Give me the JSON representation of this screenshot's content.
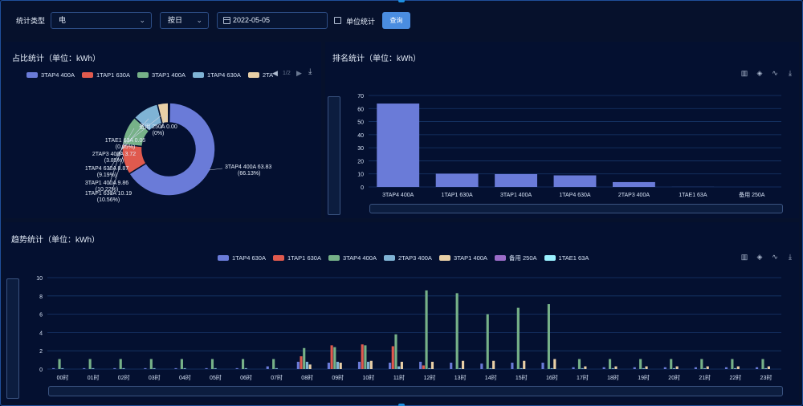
{
  "toolbar": {
    "type_label": "统计类型",
    "type_value": "电",
    "period_value": "按日",
    "date_value": "2022-05-05",
    "unit_label": "单位统计",
    "query_label": "查询"
  },
  "ratio": {
    "title": "占比统计（单位：kWh）",
    "legend": [
      {
        "name": "3TAP4 400A",
        "color": "#6a7bd8"
      },
      {
        "name": "1TAP1 630A",
        "color": "#e05a4e"
      },
      {
        "name": "3TAP1 400A",
        "color": "#76b188"
      },
      {
        "name": "1TAP4 630A",
        "color": "#7fb3d5"
      },
      {
        "name": "2TA",
        "color": "#e8cfa6"
      }
    ],
    "page_indicator": "1/2",
    "slices": [
      {
        "name": "3TAP4 400A",
        "value": 63.83,
        "percent": "66.13%",
        "color": "#6a7bd8",
        "label1": "3TAP4 400A 63.83",
        "label2": "(66.13%)"
      },
      {
        "name": "1TAP1 630A",
        "value": 10.19,
        "percent": "10.56%",
        "color": "#e05a4e",
        "label1": "1TAP1 630A 10.19",
        "label2": "(10.56%)"
      },
      {
        "name": "3TAP1 400A",
        "value": 9.86,
        "percent": "10.22%",
        "color": "#76b188",
        "label1": "3TAP1 400A 9.86",
        "label2": "(10.22%)"
      },
      {
        "name": "1TAP4 630A",
        "value": 8.87,
        "percent": "9.19%",
        "color": "#7fb3d5",
        "label1": "1TAP4 630A 8.87",
        "label2": "(9.19%)"
      },
      {
        "name": "2TAP3 400A",
        "value": 3.72,
        "percent": "3.85%",
        "color": "#e8cfa6",
        "label1": "2TAP3 400A 3.72",
        "label2": "(3.85%)"
      },
      {
        "name": "1TAE1 63A",
        "value": 0.05,
        "percent": "0.05%",
        "color": "#9adcf0",
        "label1": "1TAE1 63A 0.05",
        "label2": "(0.05%)"
      },
      {
        "name": "备用 250A",
        "value": 0.0,
        "percent": "0%",
        "color": "#9b6cc8",
        "label1": "备用 250A 0.00",
        "label2": "(0%)"
      }
    ]
  },
  "rank": {
    "title": "排名统计（单位：kWh）"
  },
  "trend": {
    "title": "趋势统计（单位：kWh）",
    "legend": [
      {
        "name": "1TAP4 630A",
        "color": "#6a7bd8"
      },
      {
        "name": "1TAP1 630A",
        "color": "#e05a4e"
      },
      {
        "name": "3TAP4 400A",
        "color": "#76b188"
      },
      {
        "name": "2TAP3 400A",
        "color": "#7fb3d5"
      },
      {
        "name": "3TAP1 400A",
        "color": "#e8cfa6"
      },
      {
        "name": "备用 250A",
        "color": "#9b6cc8"
      },
      {
        "name": "1TAE1 63A",
        "color": "#9af0ff"
      }
    ]
  },
  "chart_data": [
    {
      "type": "pie",
      "title": "占比统计（单位：kWh）",
      "categories": [
        "3TAP4 400A",
        "1TAP1 630A",
        "3TAP1 400A",
        "1TAP4 630A",
        "2TAP3 400A",
        "1TAE1 63A",
        "备用 250A"
      ],
      "values": [
        63.83,
        10.19,
        9.86,
        8.87,
        3.72,
        0.05,
        0.0
      ]
    },
    {
      "type": "bar",
      "title": "排名统计（单位：kWh）",
      "categories": [
        "3TAP4 400A",
        "1TAP1 630A",
        "3TAP1 400A",
        "1TAP4 630A",
        "2TAP3 400A",
        "1TAE1 63A",
        "备用 250A"
      ],
      "values": [
        63.83,
        10.19,
        9.86,
        8.87,
        3.72,
        0.05,
        0.0
      ],
      "ylim": [
        0,
        70
      ],
      "yticks": [
        "0",
        "10",
        "20",
        "30",
        "40",
        "50",
        "60",
        "70"
      ],
      "grid": true,
      "color": "#6a7bd8"
    },
    {
      "type": "bar",
      "title": "趋势统计（单位：kWh）",
      "categories": [
        "00时",
        "01时",
        "02时",
        "03时",
        "04时",
        "05时",
        "06时",
        "07时",
        "08时",
        "09时",
        "10时",
        "11时",
        "12时",
        "13时",
        "14时",
        "15时",
        "16时",
        "17时",
        "18时",
        "19时",
        "20时",
        "21时",
        "22时",
        "23时"
      ],
      "ylim": [
        0,
        10
      ],
      "yticks": [
        "0",
        "2",
        "4",
        "6",
        "8",
        "10"
      ],
      "grid": true,
      "legend_position": "top-center",
      "series": [
        {
          "name": "1TAP4 630A",
          "color": "#6a7bd8",
          "values": [
            0.1,
            0.1,
            0.1,
            0.1,
            0.1,
            0.1,
            0.1,
            0.3,
            0.8,
            0.7,
            0.8,
            0.7,
            0.8,
            0.7,
            0.6,
            0.7,
            0.7,
            0.2,
            0.2,
            0.2,
            0.2,
            0.2,
            0.2,
            0.2
          ]
        },
        {
          "name": "1TAP1 630A",
          "color": "#e05a4e",
          "values": [
            0,
            0,
            0,
            0,
            0,
            0,
            0,
            0,
            1.4,
            2.6,
            2.7,
            2.5,
            0.4,
            0,
            0,
            0,
            0,
            0,
            0,
            0,
            0,
            0,
            0,
            0
          ]
        },
        {
          "name": "3TAP4 400A",
          "color": "#76b188",
          "values": [
            1.1,
            1.1,
            1.1,
            1.1,
            1.1,
            1.1,
            1.1,
            1.1,
            2.3,
            2.4,
            2.6,
            3.8,
            8.6,
            8.3,
            6.0,
            6.7,
            7.1,
            1.1,
            1.1,
            1.1,
            1.1,
            1.1,
            1.1,
            1.1
          ]
        },
        {
          "name": "2TAP3 400A",
          "color": "#7fb3d5",
          "values": [
            0.1,
            0.1,
            0.1,
            0.1,
            0.1,
            0.1,
            0.1,
            0.1,
            0.8,
            0.8,
            0.8,
            0.3,
            0.1,
            0.1,
            0.1,
            0.1,
            0.1,
            0.1,
            0.1,
            0.1,
            0.1,
            0.1,
            0.1,
            0.1
          ]
        },
        {
          "name": "3TAP1 400A",
          "color": "#e8cfa6",
          "values": [
            0,
            0,
            0,
            0,
            0,
            0,
            0,
            0,
            0.5,
            0.7,
            0.9,
            0.8,
            0.8,
            0.9,
            0.9,
            0.9,
            1.1,
            0.3,
            0.3,
            0.3,
            0.3,
            0.3,
            0.3,
            0.3
          ]
        },
        {
          "name": "备用 250A",
          "color": "#9b6cc8",
          "values": [
            0,
            0,
            0,
            0,
            0,
            0,
            0,
            0,
            0,
            0,
            0,
            0,
            0,
            0,
            0,
            0,
            0,
            0,
            0,
            0,
            0,
            0,
            0,
            0
          ]
        },
        {
          "name": "1TAE1 63A",
          "color": "#9af0ff",
          "values": [
            0,
            0,
            0,
            0,
            0,
            0,
            0,
            0,
            0,
            0,
            0,
            0,
            0,
            0,
            0,
            0,
            0,
            0,
            0,
            0,
            0,
            0,
            0,
            0
          ]
        }
      ]
    }
  ]
}
